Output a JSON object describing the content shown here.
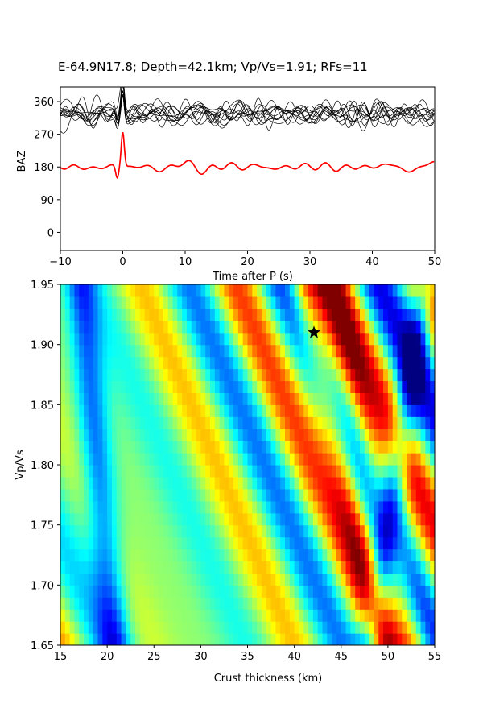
{
  "title": "E-64.9N17.8; Depth=42.1km; Vp/Vs=1.91; RFs=11",
  "colors": {
    "stack_trace": "#ff0000",
    "rf_traces": "#000000",
    "star": "#000000"
  },
  "chart_data": [
    {
      "type": "line",
      "name": "receiver-function-traces",
      "xlabel": "Time after P (s)",
      "ylabel": "BAZ",
      "xlim": [
        -10,
        50
      ],
      "ylim": [
        -50,
        400
      ],
      "xticks": [
        -10,
        0,
        10,
        20,
        30,
        40,
        50
      ],
      "xtick_labels": [
        "−10",
        "0",
        "10",
        "20",
        "30",
        "40",
        "50"
      ],
      "yticks": [
        0,
        90,
        180,
        270,
        360
      ],
      "yticks_labels": [
        "0",
        "90",
        "180",
        "270",
        "360"
      ],
      "rf_count": 11,
      "rf_baseline_baz": 325,
      "stack_baseline_baz": 180,
      "peak_time": 0
    },
    {
      "type": "heatmap",
      "name": "h-kappa-stack",
      "xlabel": "Crust thickness (km)",
      "ylabel": "Vp/Vs",
      "xlim": [
        15,
        55
      ],
      "ylim": [
        1.65,
        1.95
      ],
      "xticks": [
        15,
        20,
        25,
        30,
        35,
        40,
        45,
        50,
        55
      ],
      "yticks": [
        1.65,
        1.7,
        1.75,
        1.8,
        1.85,
        1.9,
        1.95
      ],
      "ytick_labels": [
        "1.65",
        "1.70",
        "1.75",
        "1.80",
        "1.85",
        "1.90",
        "1.95"
      ],
      "colormap": "jet",
      "best": {
        "thickness": 42.1,
        "vpvs": 1.91
      }
    }
  ]
}
